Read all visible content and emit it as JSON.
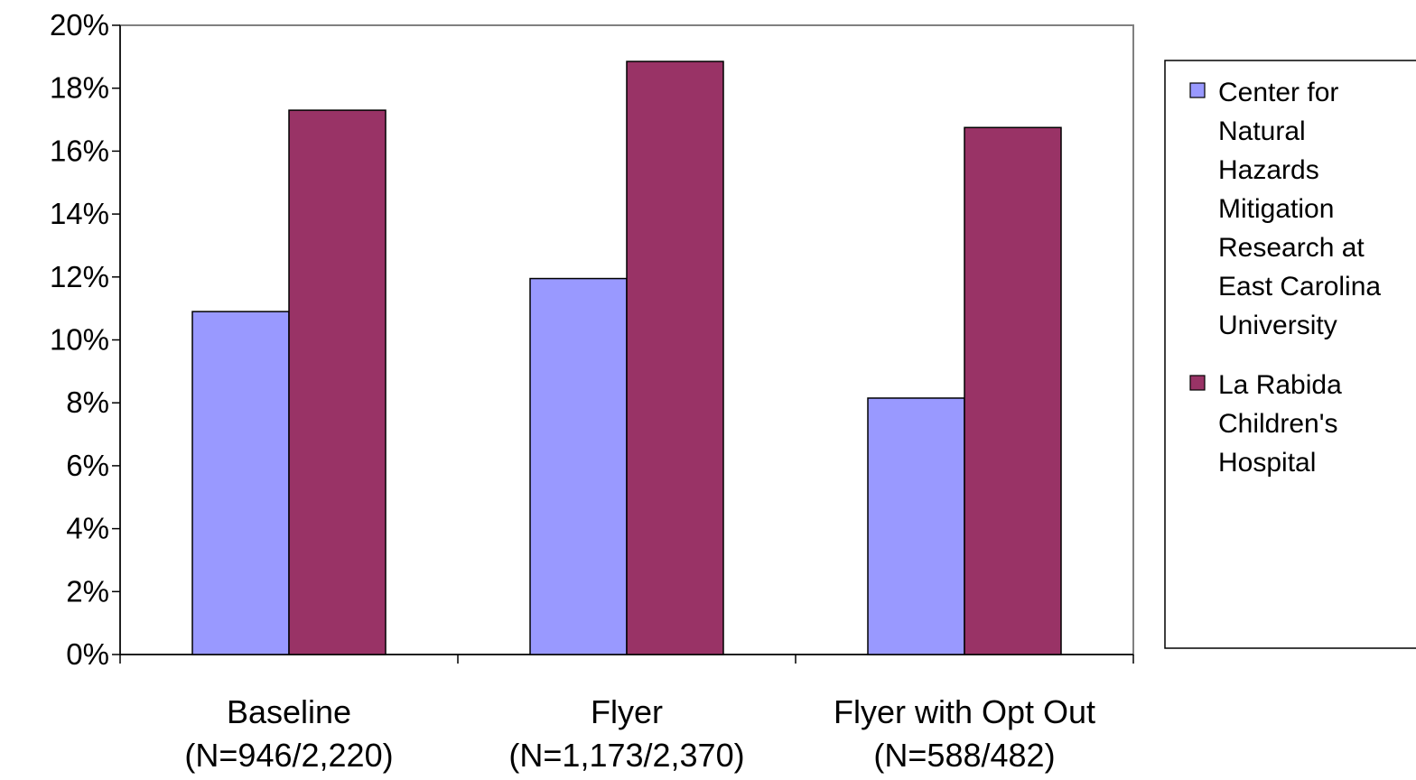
{
  "chart_data": {
    "type": "bar",
    "title": "",
    "xlabel": "",
    "ylabel": "",
    "ylim": [
      0,
      20
    ],
    "y_ticks": [
      "0%",
      "2%",
      "4%",
      "6%",
      "8%",
      "10%",
      "12%",
      "14%",
      "16%",
      "18%",
      "20%"
    ],
    "categories": [
      {
        "name": "Baseline",
        "sub": "(N=946/2,220)"
      },
      {
        "name": "Flyer",
        "sub": "(N=1,173/2,370)"
      },
      {
        "name": "Flyer with Opt Out",
        "sub": "(N=588/482)"
      }
    ],
    "series": [
      {
        "name": "Center for Natural Hazards Mitigation Research at East Carolina University",
        "legend_lines": [
          "Center for",
          "Natural",
          "Hazards",
          "Mitigation",
          "Research at",
          "East Carolina",
          "University"
        ],
        "color": "#9999ff",
        "values": [
          10.9,
          11.95,
          8.15
        ]
      },
      {
        "name": "La Rabida Children's Hospital",
        "legend_lines": [
          "La Rabida",
          "Children's",
          "Hospital"
        ],
        "color": "#993366",
        "values": [
          17.3,
          18.85,
          16.75
        ]
      }
    ],
    "grid": false,
    "legend_position": "right"
  }
}
